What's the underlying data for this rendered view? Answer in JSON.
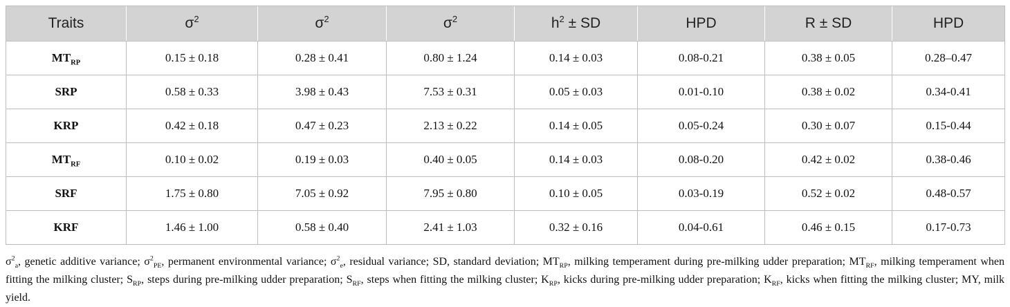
{
  "table": {
    "headers": [
      {
        "base": "Traits",
        "sup": ""
      },
      {
        "base": "σ",
        "sup": "2"
      },
      {
        "base": "σ",
        "sup": "2"
      },
      {
        "base": "σ",
        "sup": "2"
      },
      {
        "base": "h",
        "sup": "2",
        "rest": " ± SD"
      },
      {
        "base": "HPD",
        "sup": ""
      },
      {
        "base": "R ± SD",
        "sup": ""
      },
      {
        "base": "HPD",
        "sup": ""
      }
    ],
    "rows": [
      {
        "trait": "MT",
        "trait_sub": "RP",
        "cells": [
          "0.15 ± 0.18",
          "0.28 ± 0.41",
          "0.80 ± 1.24",
          "0.14 ± 0.03",
          "0.08-0.21",
          "0.38 ± 0.05",
          "0.28–0.47"
        ]
      },
      {
        "trait": "SRP",
        "trait_sub": "",
        "cells": [
          "0.58 ± 0.33",
          "3.98 ± 0.43",
          "7.53 ± 0.31",
          "0.05 ± 0.03",
          "0.01-0.10",
          "0.38 ± 0.02",
          "0.34-0.41"
        ]
      },
      {
        "trait": "KRP",
        "trait_sub": "",
        "cells": [
          "0.42 ± 0.18",
          "0.47 ± 0.23",
          "2.13 ± 0.22",
          "0.14 ± 0.05",
          "0.05-0.24",
          "0.30 ± 0.07",
          "0.15-0.44"
        ]
      },
      {
        "trait": "MT",
        "trait_sub": "RF",
        "cells": [
          "0.10 ± 0.02",
          "0.19 ± 0.03",
          "0.40 ± 0.05",
          "0.14 ± 0.03",
          "0.08-0.20",
          "0.42 ± 0.02",
          "0.38-0.46"
        ]
      },
      {
        "trait": "SRF",
        "trait_sub": "",
        "cells": [
          "1.75 ± 0.80",
          "7.05 ± 0.92",
          "7.95 ± 0.80",
          "0.10 ± 0.05",
          "0.03-0.19",
          "0.52 ± 0.02",
          "0.48-0.57"
        ]
      },
      {
        "trait": "KRF",
        "trait_sub": "",
        "cells": [
          "1.46 ± 1.00",
          "0.58 ± 0.40",
          "2.41 ± 1.03",
          "0.32 ± 0.16",
          "0.04-0.61",
          "0.46 ± 0.15",
          "0.17-0.73"
        ]
      }
    ]
  },
  "footnote": {
    "segments": [
      {
        "t": "σ"
      },
      {
        "t": "2",
        "sup": true
      },
      {
        "t": "a",
        "sub": true
      },
      {
        "t": ", genetic additive variance; σ"
      },
      {
        "t": "2",
        "sup": true
      },
      {
        "t": "PE",
        "sub": true
      },
      {
        "t": ", permanent environmental variance; σ"
      },
      {
        "t": "2",
        "sup": true
      },
      {
        "t": "e",
        "sub": true
      },
      {
        "t": ", residual variance; SD, standard deviation; MT"
      },
      {
        "t": "RP",
        "sub": true
      },
      {
        "t": ", milking temperament during pre-milking udder preparation; MT"
      },
      {
        "t": "RF",
        "sub": true
      },
      {
        "t": ", milking temperament when fitting the milking cluster; S"
      },
      {
        "t": "RP",
        "sub": true
      },
      {
        "t": ", steps during pre-milking udder preparation; S"
      },
      {
        "t": "RF",
        "sub": true
      },
      {
        "t": ", steps when fitting the milking cluster; K"
      },
      {
        "t": "RP",
        "sub": true
      },
      {
        "t": ", kicks during pre-milking udder preparation; K"
      },
      {
        "t": "RF",
        "sub": true
      },
      {
        "t": ", kicks when fitting the milking cluster; MY, milk yield."
      }
    ]
  }
}
